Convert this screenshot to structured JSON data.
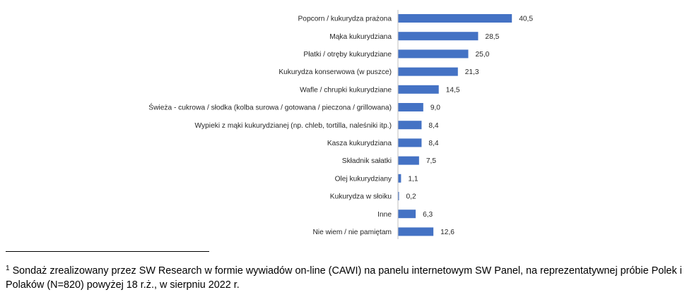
{
  "chart_data": {
    "type": "bar",
    "orientation": "horizontal",
    "categories": [
      "Popcorn / kukurydza prażona",
      "Mąka kukurydziana",
      "Płatki / otręby kukurydziane",
      "Kukurydza konserwowa (w puszce)",
      "Wafle / chrupki kukurydziane",
      "Świeża - cukrowa / słodka (kolba surowa / gotowana / pieczona / grillowana)",
      "Wypieki z mąki kukurydzianej (np. chleb, tortilla, naleśniki itp.)",
      "Kasza kukurydziana",
      "Składnik sałatki",
      "Olej kukurydziany",
      "Kukurydza w słoiku",
      "Inne",
      "Nie wiem / nie pamiętam"
    ],
    "values": [
      40.5,
      28.5,
      25.0,
      21.3,
      14.5,
      9.0,
      8.4,
      8.4,
      7.5,
      1.1,
      0.2,
      6.3,
      12.6
    ],
    "data_labels": [
      "40,5",
      "28,5",
      "25,0",
      "21,3",
      "14,5",
      "9,0",
      "8,4",
      "8,4",
      "7,5",
      "1,1",
      "0,2",
      "6,3",
      "12,6"
    ],
    "xlim": [
      0,
      50
    ],
    "bar_color": "#4472C4",
    "axis_color": "#BFBFBF",
    "grid": false,
    "legend": "none",
    "title": "",
    "xlabel": "",
    "ylabel": ""
  },
  "footnote": {
    "marker": "1",
    "text": "Sondaż zrealizowany przez SW Research w formie wywiadów on-line (CAWI) na panelu internetowym SW Panel, na reprezentatywnej próbie Polek i Polaków (N=820) powyżej 18 r.ż., w sierpniu 2022 r."
  }
}
